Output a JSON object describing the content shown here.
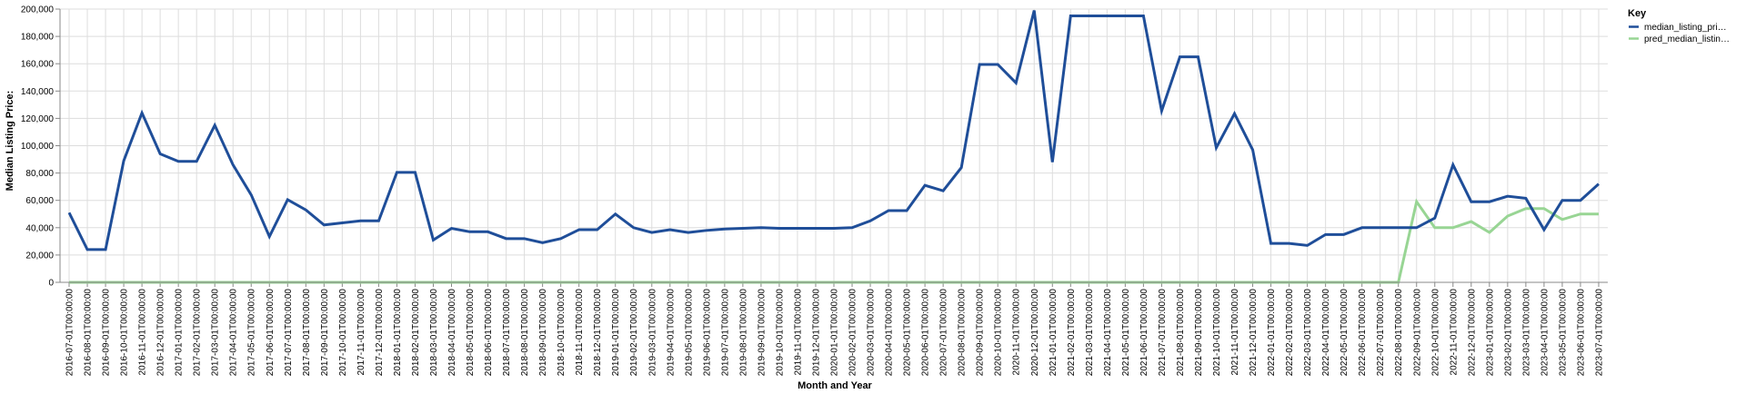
{
  "chart_data": {
    "type": "line",
    "xlabel": "Month and Year",
    "ylabel": "Median Listing Price:",
    "ylim": [
      0,
      200000
    ],
    "y_ticks": [
      0,
      20000,
      40000,
      60000,
      80000,
      100000,
      120000,
      140000,
      160000,
      180000,
      200000
    ],
    "y_tick_labels": [
      "0",
      "20,000",
      "40,000",
      "60,000",
      "80,000",
      "100,000",
      "120,000",
      "140,000",
      "160,000",
      "180,000",
      "200,000"
    ],
    "grid": true,
    "legend": {
      "title": "Key",
      "placement": "top-right",
      "entries": [
        "median_listing_pri…",
        "pred_median_listin…"
      ]
    },
    "x": [
      "2016-07-01T00:00:00",
      "2016-08-01T00:00:00",
      "2016-09-01T00:00:00",
      "2016-10-01T00:00:00",
      "2016-11-01T00:00:00",
      "2016-12-01T00:00:00",
      "2017-01-01T00:00:00",
      "2017-02-01T00:00:00",
      "2017-03-01T00:00:00",
      "2017-04-01T00:00:00",
      "2017-05-01T00:00:00",
      "2017-06-01T00:00:00",
      "2017-07-01T00:00:00",
      "2017-08-01T00:00:00",
      "2017-09-01T00:00:00",
      "2017-10-01T00:00:00",
      "2017-11-01T00:00:00",
      "2017-12-01T00:00:00",
      "2018-01-01T00:00:00",
      "2018-02-01T00:00:00",
      "2018-03-01T00:00:00",
      "2018-04-01T00:00:00",
      "2018-05-01T00:00:00",
      "2018-06-01T00:00:00",
      "2018-07-01T00:00:00",
      "2018-08-01T00:00:00",
      "2018-09-01T00:00:00",
      "2018-10-01T00:00:00",
      "2018-11-01T00:00:00",
      "2018-12-01T00:00:00",
      "2019-01-01T00:00:00",
      "2019-02-01T00:00:00",
      "2019-03-01T00:00:00",
      "2019-04-01T00:00:00",
      "2019-05-01T00:00:00",
      "2019-06-01T00:00:00",
      "2019-07-01T00:00:00",
      "2019-08-01T00:00:00",
      "2019-09-01T00:00:00",
      "2019-10-01T00:00:00",
      "2019-11-01T00:00:00",
      "2019-12-01T00:00:00",
      "2020-01-01T00:00:00",
      "2020-02-01T00:00:00",
      "2020-03-01T00:00:00",
      "2020-04-01T00:00:00",
      "2020-05-01T00:00:00",
      "2020-06-01T00:00:00",
      "2020-07-01T00:00:00",
      "2020-08-01T00:00:00",
      "2020-09-01T00:00:00",
      "2020-10-01T00:00:00",
      "2020-11-01T00:00:00",
      "2020-12-01T00:00:00",
      "2021-01-01T00:00:00",
      "2021-02-01T00:00:00",
      "2021-03-01T00:00:00",
      "2021-04-01T00:00:00",
      "2021-05-01T00:00:00",
      "2021-06-01T00:00:00",
      "2021-07-01T00:00:00",
      "2021-08-01T00:00:00",
      "2021-09-01T00:00:00",
      "2021-10-01T00:00:00",
      "2021-11-01T00:00:00",
      "2021-12-01T00:00:00",
      "2022-01-01T00:00:00",
      "2022-02-01T00:00:00",
      "2022-03-01T00:00:00",
      "2022-04-01T00:00:00",
      "2022-05-01T00:00:00",
      "2022-06-01T00:00:00",
      "2022-07-01T00:00:00",
      "2022-08-01T00:00:00",
      "2022-09-01T00:00:00",
      "2022-10-01T00:00:00",
      "2022-11-01T00:00:00",
      "2022-12-01T00:00:00",
      "2023-01-01T00:00:00",
      "2023-02-01T00:00:00",
      "2023-03-01T00:00:00",
      "2023-04-01T00:00:00",
      "2023-05-01T00:00:00",
      "2023-06-01T00:00:00",
      "2023-07-01T00:00:00"
    ],
    "series": [
      {
        "name": "median_listing_pri…",
        "color": "#1f4e99",
        "values": [
          51000,
          24000,
          24000,
          89000,
          124000,
          94000,
          88500,
          88500,
          115000,
          86000,
          64000,
          33500,
          60500,
          53000,
          42000,
          43500,
          45000,
          45000,
          80500,
          80500,
          31000,
          39500,
          37000,
          37000,
          32000,
          32000,
          29000,
          32000,
          38500,
          38500,
          50000,
          40000,
          36500,
          38500,
          36500,
          38000,
          39000,
          39500,
          40000,
          39500,
          39500,
          39500,
          39500,
          40000,
          45000,
          52500,
          52500,
          71000,
          67000,
          84000,
          159500,
          159500,
          146000,
          199000,
          88000,
          195000,
          195000,
          195000,
          195000,
          195000,
          125500,
          165000,
          165000,
          98500,
          123500,
          97000,
          28500,
          28500,
          27000,
          35000,
          35000,
          40000,
          40000,
          40000,
          40000,
          47000,
          86000,
          59000,
          59000,
          63000,
          61500,
          38500,
          60000,
          60000,
          72000
        ]
      },
      {
        "name": "pred_median_listin…",
        "color": "#98d594",
        "values": [
          0,
          0,
          0,
          0,
          0,
          0,
          0,
          0,
          0,
          0,
          0,
          0,
          0,
          0,
          0,
          0,
          0,
          0,
          0,
          0,
          0,
          0,
          0,
          0,
          0,
          0,
          0,
          0,
          0,
          0,
          0,
          0,
          0,
          0,
          0,
          0,
          0,
          0,
          0,
          0,
          0,
          0,
          0,
          0,
          0,
          0,
          0,
          0,
          0,
          0,
          0,
          0,
          0,
          0,
          0,
          0,
          0,
          0,
          0,
          0,
          0,
          0,
          0,
          0,
          0,
          0,
          0,
          0,
          0,
          0,
          0,
          0,
          0,
          0,
          59000,
          40000,
          40000,
          44500,
          36500,
          48500,
          54000,
          54000,
          46000,
          50000,
          50000
        ]
      }
    ]
  }
}
